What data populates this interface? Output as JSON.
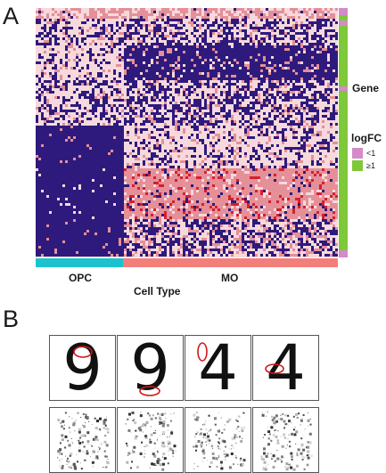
{
  "panel_a": {
    "letter": "A",
    "x_axis_title": "Cell Type",
    "cell_types": [
      {
        "label": "OPC",
        "color": "#1cc3cf"
      },
      {
        "label": "MO",
        "color": "#f37f7a"
      }
    ],
    "gene_legend_title": "Gene",
    "logfc_legend": {
      "title": "logFC",
      "entries": [
        {
          "label": "<1",
          "color": "#d58ac9"
        },
        {
          "label": "≥1",
          "color": "#7ec83a"
        }
      ]
    },
    "heatmap_colors": {
      "low": "#2e1a7c",
      "mid": "#f6d9dc",
      "high": "#e58f98",
      "peak": "#d5202e"
    }
  },
  "panel_b": {
    "letter": "B",
    "digits": [
      "9",
      "9",
      "4",
      "4"
    ],
    "highlight_color": "#d01818"
  }
}
